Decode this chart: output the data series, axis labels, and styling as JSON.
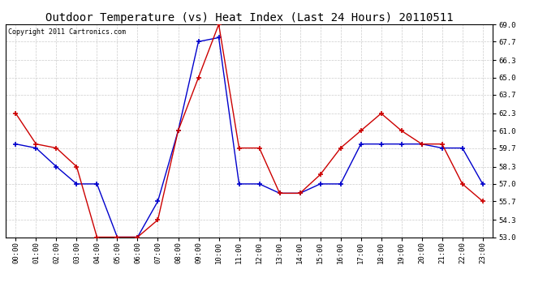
{
  "title": "Outdoor Temperature (vs) Heat Index (Last 24 Hours) 20110511",
  "copyright": "Copyright 2011 Cartronics.com",
  "x_labels": [
    "00:00",
    "01:00",
    "02:00",
    "03:00",
    "04:00",
    "05:00",
    "06:00",
    "07:00",
    "08:00",
    "09:00",
    "10:00",
    "11:00",
    "12:00",
    "13:00",
    "14:00",
    "15:00",
    "16:00",
    "17:00",
    "18:00",
    "19:00",
    "20:00",
    "21:00",
    "22:00",
    "23:00"
  ],
  "blue_data": [
    60.0,
    59.7,
    58.3,
    57.0,
    57.0,
    53.0,
    53.0,
    55.7,
    61.0,
    67.7,
    68.0,
    57.0,
    57.0,
    56.3,
    56.3,
    57.0,
    57.0,
    60.0,
    60.0,
    60.0,
    60.0,
    59.7,
    59.7,
    57.0
  ],
  "red_data": [
    62.3,
    60.0,
    59.7,
    58.3,
    53.0,
    53.0,
    53.0,
    54.3,
    61.0,
    65.0,
    69.0,
    59.7,
    59.7,
    56.3,
    56.3,
    57.7,
    59.7,
    61.0,
    62.3,
    61.0,
    60.0,
    60.0,
    57.0,
    55.7
  ],
  "blue_color": "#0000cc",
  "red_color": "#cc0000",
  "ylim_min": 53.0,
  "ylim_max": 69.0,
  "yticks": [
    53.0,
    54.3,
    55.7,
    57.0,
    58.3,
    59.7,
    61.0,
    62.3,
    63.7,
    65.0,
    66.3,
    67.7,
    69.0
  ],
  "background_color": "#ffffff",
  "grid_color": "#cccccc",
  "title_fontsize": 10,
  "copyright_fontsize": 6,
  "tick_fontsize": 6.5
}
